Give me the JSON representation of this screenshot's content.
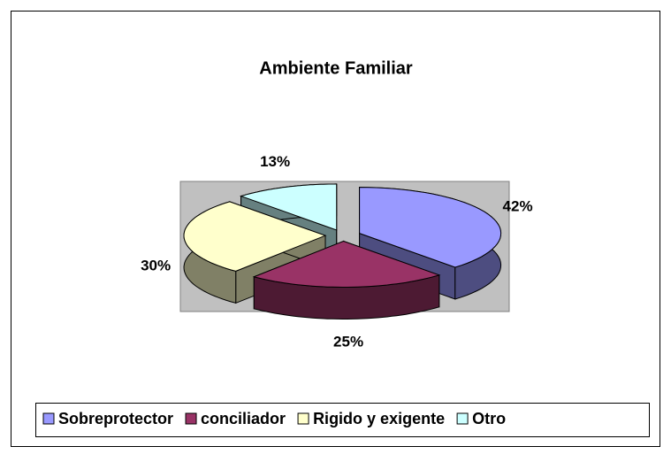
{
  "chart_data": {
    "type": "pie3d",
    "title": "Ambiente Familiar",
    "categories": [
      "Sobreprotector",
      "conciliador",
      "Rigido y exigente",
      "Otro"
    ],
    "values": [
      42,
      25,
      30,
      13
    ],
    "value_labels": [
      "42%",
      "25%",
      "30%",
      "13%"
    ],
    "colors": [
      "#9999ff",
      "#993366",
      "#ffffcc",
      "#ccffff"
    ],
    "legend": "bottom"
  }
}
